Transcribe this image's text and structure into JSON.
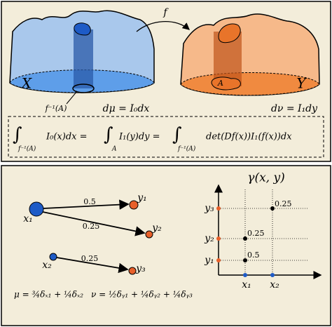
{
  "top": {
    "map_label": "f",
    "source_label": "X",
    "target_label": "Y",
    "set_label": "A",
    "preimage_label": "f⁻¹(A)",
    "source_measure": "dμ = I₀dx",
    "target_measure": "dν = I₁dy",
    "equation": [
      "∫",
      "f⁻¹(A)",
      "I₀(x)dx =",
      "∫",
      "A",
      "I₁(y)dy =",
      "∫",
      "f⁻¹(A)",
      "det(Df(x))I₁(f(x))dx"
    ]
  },
  "bottom": {
    "nodes": {
      "x1": "x₁",
      "x2": "x₂",
      "y1": "y₁",
      "y2": "y₂",
      "y3": "y₃"
    },
    "edges": [
      "0.5",
      "0.25",
      "0.25"
    ],
    "mu": "μ = ¾δₓ₁ + ¼δₓ₂",
    "nu": "ν = ½δᵧ₁ + ¼δᵧ₂ + ¼δᵧ₃",
    "plan": {
      "title": "γ(x, y)",
      "y_labels": [
        "y₃",
        "y₂",
        "y₁"
      ],
      "x_labels": [
        "x₁",
        "x₂"
      ],
      "weights": [
        "0.25",
        "0.25",
        "0.5"
      ]
    }
  }
}
